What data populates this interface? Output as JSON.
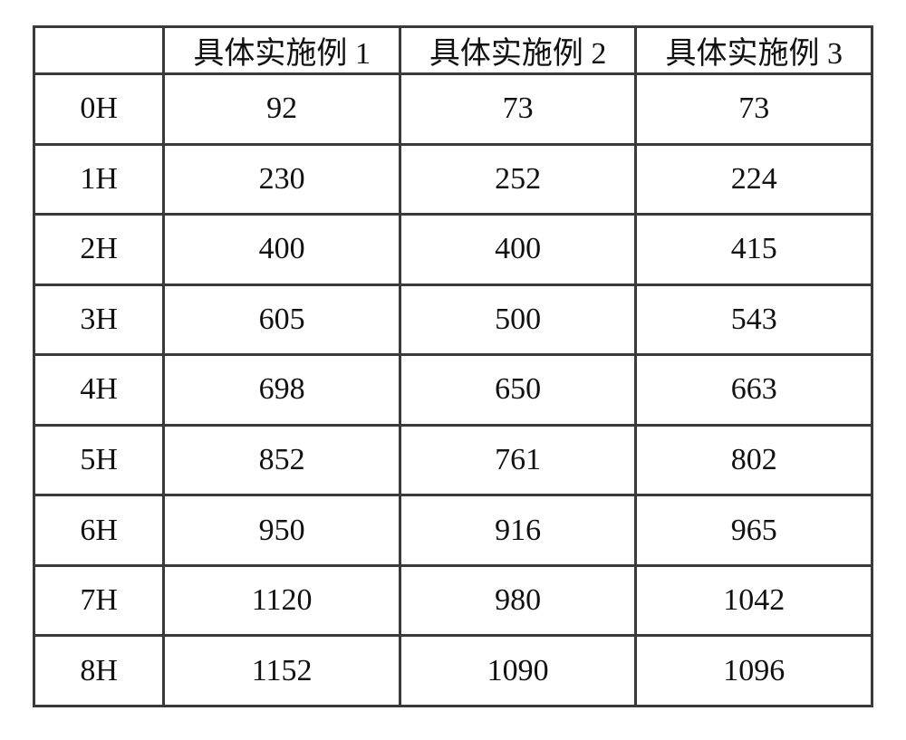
{
  "table": {
    "type": "table",
    "border_color": "#3a3a3a",
    "background_color": "#ffffff",
    "text_color": "#111111",
    "font_family": "SimSun",
    "header_fontsize_pt": 26,
    "body_fontsize_pt": 26,
    "column_widths_pct": [
      15.5,
      28.17,
      28.17,
      28.17
    ],
    "columns": [
      "",
      "具体实施例 1",
      "具体实施例 2",
      "具体实施例 3"
    ],
    "rows": [
      [
        "0H",
        "92",
        "73",
        "73"
      ],
      [
        "1H",
        "230",
        "252",
        "224"
      ],
      [
        "2H",
        "400",
        "400",
        "415"
      ],
      [
        "3H",
        "605",
        "500",
        "543"
      ],
      [
        "4H",
        "698",
        "650",
        "663"
      ],
      [
        "5H",
        "852",
        "761",
        "802"
      ],
      [
        "6H",
        "950",
        "916",
        "965"
      ],
      [
        "7H",
        "1120",
        "980",
        "1042"
      ],
      [
        "8H",
        "1152",
        "1090",
        "1096"
      ]
    ]
  }
}
